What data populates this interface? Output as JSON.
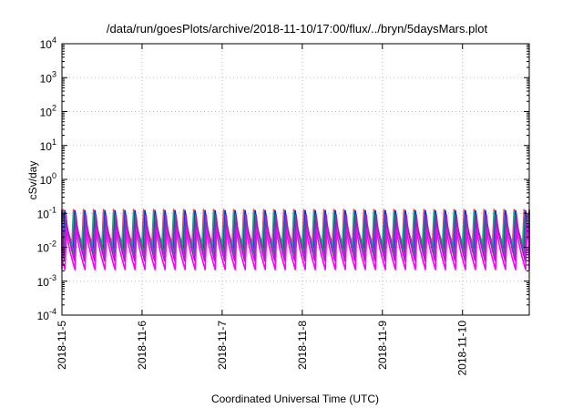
{
  "chart_data": {
    "type": "line",
    "title": "/data/run/goesPlots/archive/2018-11-10/17:00/flux/../bryn/5daysMars.plot",
    "xlabel": "Coordinated Universal Time (UTC)",
    "ylabel": "cSv/day",
    "yscale": "log",
    "ylim": [
      0.0001,
      10000
    ],
    "yticks": [
      {
        "base": "10",
        "exp": "-4"
      },
      {
        "base": "10",
        "exp": "-3"
      },
      {
        "base": "10",
        "exp": "-2"
      },
      {
        "base": "10",
        "exp": "-1"
      },
      {
        "base": "10",
        "exp": "0"
      },
      {
        "base": "10",
        "exp": "1"
      },
      {
        "base": "10",
        "exp": "2"
      },
      {
        "base": "10",
        "exp": "3"
      },
      {
        "base": "10",
        "exp": "4"
      }
    ],
    "xlim": [
      "2018-11-05",
      "2018-11-10 20:00"
    ],
    "xticks": [
      "2018-11-5",
      "2018-11-6",
      "2018-11-7",
      "2018-11-8",
      "2018-11-9",
      "2018-11-10"
    ],
    "grid": true,
    "cycles_per_day": 8,
    "series": [
      {
        "color": "#ff4040",
        "max": 0.13,
        "min": 0.013
      },
      {
        "color": "#00b8b8",
        "max": 0.11,
        "min": 0.011
      },
      {
        "color": "#00b050",
        "max": 0.1,
        "min": 0.009
      },
      {
        "color": "#1a1aff",
        "max": 0.12,
        "min": 0.007
      },
      {
        "color": "#2a8a8a",
        "max": 0.09,
        "min": 0.0065
      },
      {
        "color": "#a020c0",
        "max": 0.09,
        "min": 0.004
      },
      {
        "color": "#ff00ff",
        "max": 0.035,
        "min": 0.0022
      }
    ]
  }
}
